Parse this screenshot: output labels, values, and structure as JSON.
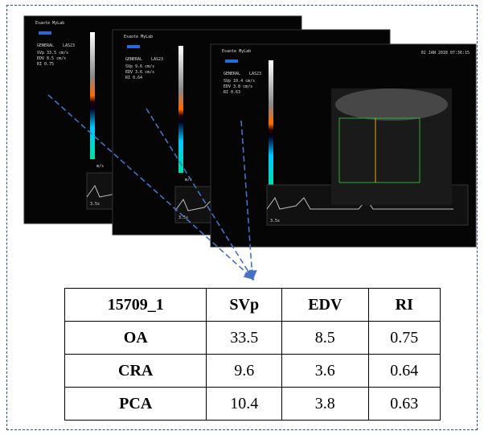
{
  "panels": [
    {
      "logo": "Esaote MyLab",
      "preset": "GENERAL",
      "probe": "LAS23",
      "measurements": [
        "SVp  33.5 cm/s",
        "EDV   8.5 cm/s",
        "RI    0.75"
      ],
      "scale": "m/s",
      "time": "3.5s"
    },
    {
      "logo": "Esaote MyLab",
      "preset": "GENERAL",
      "probe": "LAS23",
      "measurements": [
        "SVp   9.6 cm/s",
        "EDV   3.6 cm/s",
        "RI    0.64"
      ],
      "scale": "m/s",
      "time": "3.5s"
    },
    {
      "logo": "Esaote MyLab",
      "date": "02 JAN 2018 07:36:15",
      "preset": "GENERAL",
      "probe": "LAS23",
      "measurements": [
        "SVp  10.4 cm/s",
        "EDV   3.8 cm/s",
        "RI    0.63"
      ],
      "scale": "cm/s",
      "time": "3.5s"
    }
  ],
  "table": {
    "header": [
      "15709_1",
      "SVp",
      "EDV",
      "RI"
    ],
    "rows": [
      [
        "OA",
        "33.5",
        "8.5",
        "0.75"
      ],
      [
        "CRA",
        "9.6",
        "3.6",
        "0.64"
      ],
      [
        "PCA",
        "10.4",
        "3.8",
        "0.63"
      ]
    ]
  }
}
